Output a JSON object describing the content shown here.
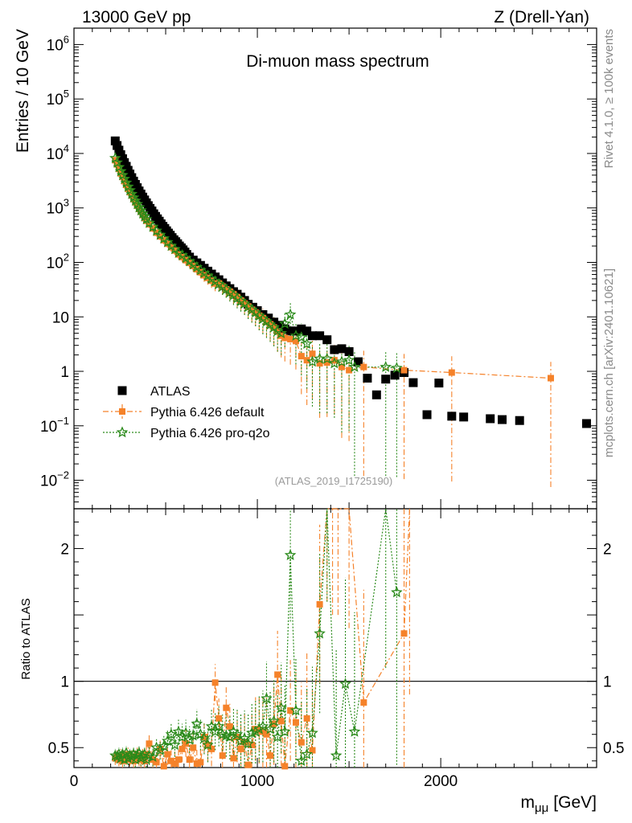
{
  "header": {
    "left": "13000 GeV pp",
    "right": "Z (Drell-Yan)"
  },
  "side_labels": {
    "rivet": "Rivet 4.1.0, ≥ 100k events",
    "mcplots": "mcplots.cern.ch [arXiv:2401.10621]"
  },
  "chart_data": {
    "type": "scatter",
    "title": "Di-muon mass spectrum",
    "analysis_tag": "(ATLAS_2019_I1725190)",
    "xlabel_main": "m",
    "xlabel_sub": "μμ",
    "xlabel_unit": "[GeV]",
    "ylabel": "Entries / 10 GeV",
    "ratio_ylabel": "Ratio to ATLAS",
    "xlim": [
      0,
      2850
    ],
    "ylim": [
      0.003,
      2000000
    ],
    "yscale": "log",
    "ratio_ylim": [
      0.35,
      2.3
    ],
    "x_ticks": [
      0,
      1000,
      2000
    ],
    "y_ticks": [
      {
        "v": 0.01,
        "base": "10",
        "exp": "−2"
      },
      {
        "v": 0.1,
        "base": "10",
        "exp": "−1"
      },
      {
        "v": 1,
        "base": "1",
        "exp": ""
      },
      {
        "v": 10,
        "base": "10",
        "exp": ""
      },
      {
        "v": 100,
        "base": "10",
        "exp": "2"
      },
      {
        "v": 1000,
        "base": "10",
        "exp": "3"
      },
      {
        "v": 10000,
        "base": "10",
        "exp": "4"
      },
      {
        "v": 100000,
        "base": "10",
        "exp": "5"
      },
      {
        "v": 1000000,
        "base": "10",
        "exp": "6"
      }
    ],
    "ratio_ticks": [
      0.5,
      1,
      2
    ],
    "ratio_tick_labels": [
      "0.5",
      "1",
      "2"
    ],
    "legend": [
      {
        "label": "ATLAS"
      },
      {
        "label": "Pythia 6.426 default"
      },
      {
        "label": "Pythia 6.426 pro-q2o"
      }
    ],
    "series": [
      {
        "name": "ATLAS",
        "color": "#000000",
        "marker": "square",
        "x": [
          225,
          235,
          245,
          255,
          265,
          275,
          285,
          295,
          305,
          315,
          325,
          335,
          345,
          355,
          365,
          375,
          385,
          395,
          405,
          415,
          425,
          435,
          445,
          455,
          465,
          475,
          485,
          495,
          505,
          515,
          525,
          535,
          545,
          555,
          565,
          575,
          585,
          595,
          605,
          615,
          630,
          650,
          670,
          690,
          710,
          730,
          750,
          770,
          790,
          810,
          830,
          850,
          870,
          890,
          910,
          930,
          950,
          975,
          1000,
          1030,
          1060,
          1090,
          1120,
          1150,
          1180,
          1210,
          1240,
          1270,
          1300,
          1340,
          1380,
          1420,
          1460,
          1500,
          1550,
          1600,
          1650,
          1700,
          1750,
          1800,
          1850,
          1925,
          1990,
          2060,
          2125,
          2270,
          2335,
          2430,
          2795
        ],
        "y": [
          17000,
          14000,
          11500,
          9500,
          8000,
          6800,
          5800,
          4900,
          4200,
          3600,
          3100,
          2700,
          2350,
          2050,
          1800,
          1580,
          1400,
          1240,
          1100,
          980,
          880,
          780,
          700,
          630,
          570,
          510,
          460,
          420,
          380,
          345,
          315,
          285,
          260,
          240,
          220,
          200,
          185,
          170,
          155,
          140,
          125,
          110,
          98,
          88,
          78,
          69,
          61,
          54,
          48,
          42,
          37,
          33,
          29,
          26,
          23,
          20,
          17,
          15,
          13,
          11,
          9.5,
          8,
          7,
          6,
          5.5,
          5.5,
          6,
          5.5,
          4.5,
          4.5,
          3.8,
          2.5,
          2.6,
          2.3,
          1.5,
          0.75,
          0.37,
          0.72,
          0.85,
          0.95,
          0.62,
          0.16,
          0.61,
          0.15,
          0.145,
          0.135,
          0.13,
          0.125,
          0.11
        ]
      },
      {
        "name": "Pythia 6.426 default",
        "color": "#f5822a",
        "marker": "square",
        "x": [
          225,
          235,
          245,
          255,
          265,
          275,
          285,
          295,
          305,
          315,
          325,
          335,
          345,
          355,
          365,
          375,
          385,
          395,
          410,
          430,
          450,
          470,
          490,
          510,
          530,
          550,
          570,
          590,
          610,
          630,
          650,
          670,
          690,
          710,
          730,
          750,
          770,
          790,
          810,
          830,
          850,
          870,
          890,
          910,
          930,
          950,
          970,
          990,
          1010,
          1030,
          1050,
          1070,
          1090,
          1110,
          1130,
          1150,
          1180,
          1210,
          1240,
          1270,
          1300,
          1340,
          1380,
          1420,
          1460,
          1500,
          1580,
          1800,
          2060,
          2600
        ],
        "y": [
          7500,
          6300,
          5200,
          4300,
          3700,
          3100,
          2650,
          2250,
          1950,
          1700,
          1450,
          1270,
          1100,
          960,
          850,
          740,
          650,
          580,
          500,
          420,
          350,
          300,
          255,
          220,
          190,
          165,
          140,
          125,
          110,
          98,
          86,
          75,
          66,
          58,
          52,
          46,
          41,
          41,
          36,
          32,
          29,
          26,
          23,
          20,
          17.5,
          15.5,
          13.5,
          12,
          10.5,
          9.5,
          8.2,
          7.3,
          6.4,
          5.4,
          4.5,
          4.1,
          3.9,
          3.6,
          1.9,
          1.6,
          2.1,
          1.4,
          1.45,
          1.6,
          1.2,
          1.05,
          1.2,
          1.05,
          0.95,
          0.75
        ],
        "yerr": [
          0.08,
          0.08,
          0.08,
          0.08,
          0.09,
          0.09,
          0.1,
          0.1,
          0.1,
          0.1,
          0.12,
          0.12,
          0.12,
          0.12,
          0.12,
          0.13,
          0.13,
          0.13,
          0.14,
          0.14,
          0.15,
          0.15,
          0.16,
          0.16,
          0.17,
          0.18,
          0.18,
          0.19,
          0.2,
          0.2,
          0.22,
          0.22,
          0.23,
          0.24,
          0.25,
          0.26,
          0.28,
          0.28,
          0.3,
          0.3,
          0.32,
          0.34,
          0.35,
          0.36,
          0.38,
          0.4,
          0.42,
          0.44,
          0.46,
          0.48,
          0.5,
          0.52,
          0.55,
          0.58,
          0.6,
          0.63,
          0.66,
          0.7,
          0.8,
          0.85,
          0.85,
          0.9,
          0.9,
          0.9,
          0.95,
          0.95,
          0.99,
          0.99,
          0.99,
          0.99
        ],
        "ratio_x": [
          225,
          235,
          245,
          255,
          265,
          275,
          285,
          295,
          305,
          315,
          325,
          335,
          345,
          355,
          365,
          375,
          385,
          395,
          410,
          430,
          450,
          470,
          490,
          510,
          530,
          550,
          570,
          590,
          610,
          630,
          650,
          670,
          690,
          710,
          730,
          750,
          770,
          790,
          810,
          830,
          850,
          870,
          890,
          910,
          930,
          950,
          970,
          990,
          1010,
          1030,
          1050,
          1070,
          1090,
          1110,
          1130,
          1150,
          1180,
          1210,
          1240,
          1270,
          1300,
          1340,
          1380,
          1410,
          1440,
          1500,
          1580,
          1800,
          1830
        ],
        "ratio": [
          0.42,
          0.43,
          0.41,
          0.44,
          0.4,
          0.43,
          0.42,
          0.45,
          0.41,
          0.43,
          0.4,
          0.42,
          0.44,
          0.42,
          0.41,
          0.43,
          0.4,
          0.45,
          0.53,
          0.41,
          0.39,
          0.49,
          0.36,
          0.45,
          0.4,
          0.38,
          0.41,
          0.49,
          0.53,
          0.41,
          0.5,
          0.38,
          0.39,
          0.58,
          0.52,
          0.49,
          0.99,
          0.72,
          0.44,
          0.8,
          0.66,
          0.42,
          0.58,
          0.49,
          0.54,
          0.37,
          0.52,
          0.64,
          0.63,
          0.62,
          0.6,
          0.44,
          0.68,
          1.05,
          0.7,
          0.36,
          0.78,
          0.69,
          0.54,
          0.72,
          0.48,
          1.58,
          2.3,
          2.3,
          2.3,
          2.3,
          0.84,
          1.36,
          2.3
        ],
        "ratio_err": [
          0.05,
          0.05,
          0.05,
          0.05,
          0.05,
          0.05,
          0.05,
          0.05,
          0.05,
          0.05,
          0.06,
          0.06,
          0.06,
          0.06,
          0.06,
          0.06,
          0.06,
          0.06,
          0.07,
          0.07,
          0.07,
          0.07,
          0.08,
          0.08,
          0.08,
          0.09,
          0.09,
          0.1,
          0.1,
          0.1,
          0.11,
          0.11,
          0.12,
          0.12,
          0.13,
          0.13,
          0.14,
          0.15,
          0.15,
          0.16,
          0.17,
          0.18,
          0.19,
          0.2,
          0.21,
          0.22,
          0.23,
          0.24,
          0.25,
          0.27,
          0.28,
          0.29,
          0.31,
          0.33,
          0.34,
          0.36,
          0.38,
          0.4,
          0.45,
          0.5,
          0.5,
          0.6,
          0.7,
          0.8,
          0.8,
          0.9,
          0.85,
          1.3,
          1.4
        ]
      },
      {
        "name": "Pythia 6.426 pro-q2o",
        "color": "#2a8a1a",
        "marker": "star",
        "x": [
          225,
          235,
          245,
          255,
          265,
          275,
          285,
          295,
          305,
          315,
          325,
          335,
          345,
          355,
          365,
          375,
          385,
          395,
          410,
          430,
          450,
          470,
          490,
          510,
          530,
          550,
          570,
          590,
          610,
          630,
          650,
          670,
          690,
          710,
          730,
          750,
          770,
          790,
          810,
          830,
          850,
          870,
          890,
          910,
          930,
          950,
          970,
          990,
          1010,
          1030,
          1050,
          1070,
          1090,
          1110,
          1130,
          1150,
          1180,
          1210,
          1240,
          1270,
          1300,
          1340,
          1380,
          1420,
          1460,
          1500,
          1530,
          1700,
          1760
        ],
        "y": [
          8200,
          6800,
          5600,
          4700,
          4000,
          3400,
          2900,
          2450,
          2100,
          1800,
          1550,
          1350,
          1170,
          1020,
          900,
          790,
          700,
          620,
          530,
          450,
          380,
          320,
          275,
          235,
          200,
          175,
          150,
          135,
          120,
          105,
          92,
          82,
          72,
          64,
          57,
          50,
          45,
          40,
          36,
          32,
          28,
          25,
          22,
          19.5,
          17.5,
          15.2,
          13.5,
          12,
          10.5,
          9.2,
          8.2,
          7.2,
          6.4,
          5.5,
          5,
          7.5,
          11,
          4.5,
          4.2,
          3.2,
          1.5,
          1.7,
          1.7,
          1.4,
          1.5,
          1.6,
          1.2,
          1.2,
          1.15
        ],
        "yerr": [
          0.08,
          0.08,
          0.08,
          0.08,
          0.09,
          0.09,
          0.1,
          0.1,
          0.1,
          0.1,
          0.12,
          0.12,
          0.12,
          0.12,
          0.12,
          0.13,
          0.13,
          0.13,
          0.14,
          0.14,
          0.15,
          0.15,
          0.16,
          0.16,
          0.17,
          0.18,
          0.18,
          0.19,
          0.2,
          0.2,
          0.22,
          0.22,
          0.23,
          0.24,
          0.25,
          0.26,
          0.28,
          0.28,
          0.3,
          0.3,
          0.32,
          0.34,
          0.35,
          0.36,
          0.38,
          0.4,
          0.42,
          0.44,
          0.46,
          0.48,
          0.5,
          0.52,
          0.55,
          0.58,
          0.6,
          0.63,
          0.66,
          0.7,
          0.8,
          0.85,
          0.85,
          0.9,
          0.9,
          0.9,
          0.95,
          0.95,
          0.99,
          0.99,
          0.99
        ],
        "ratio_x": [
          225,
          235,
          245,
          255,
          265,
          275,
          285,
          295,
          305,
          315,
          325,
          335,
          345,
          355,
          365,
          375,
          385,
          395,
          410,
          430,
          450,
          470,
          490,
          510,
          530,
          550,
          570,
          590,
          610,
          630,
          650,
          670,
          690,
          710,
          730,
          750,
          770,
          790,
          810,
          830,
          850,
          870,
          890,
          910,
          930,
          950,
          970,
          990,
          1010,
          1030,
          1050,
          1070,
          1090,
          1110,
          1130,
          1150,
          1180,
          1210,
          1240,
          1270,
          1300,
          1340,
          1380,
          1430,
          1480,
          1530,
          1700,
          1760
        ],
        "ratio": [
          0.44,
          0.43,
          0.45,
          0.42,
          0.45,
          0.41,
          0.46,
          0.42,
          0.44,
          0.43,
          0.45,
          0.41,
          0.44,
          0.46,
          0.42,
          0.43,
          0.45,
          0.41,
          0.44,
          0.43,
          0.5,
          0.48,
          0.51,
          0.55,
          0.6,
          0.52,
          0.62,
          0.58,
          0.61,
          0.56,
          0.59,
          0.68,
          0.6,
          0.57,
          0.52,
          0.66,
          0.62,
          0.66,
          0.6,
          0.59,
          0.58,
          0.62,
          0.6,
          0.55,
          0.57,
          0.53,
          0.61,
          0.62,
          0.64,
          0.66,
          0.87,
          0.64,
          0.7,
          0.58,
          0.8,
          0.62,
          1.95,
          0.78,
          0.4,
          0.45,
          0.61,
          1.36,
          2.3,
          0.44,
          0.98,
          0.62,
          2.3,
          1.67
        ],
        "ratio_err": [
          0.05,
          0.05,
          0.05,
          0.05,
          0.05,
          0.05,
          0.05,
          0.05,
          0.05,
          0.05,
          0.06,
          0.06,
          0.06,
          0.06,
          0.06,
          0.06,
          0.06,
          0.06,
          0.07,
          0.07,
          0.07,
          0.07,
          0.08,
          0.08,
          0.08,
          0.09,
          0.09,
          0.1,
          0.1,
          0.1,
          0.11,
          0.11,
          0.12,
          0.12,
          0.13,
          0.13,
          0.14,
          0.15,
          0.15,
          0.16,
          0.17,
          0.18,
          0.19,
          0.2,
          0.21,
          0.22,
          0.23,
          0.24,
          0.25,
          0.27,
          0.28,
          0.29,
          0.31,
          0.33,
          0.34,
          0.36,
          0.5,
          0.4,
          0.45,
          0.5,
          0.5,
          0.6,
          0.7,
          0.8,
          0.8,
          0.9,
          1.2,
          1.3
        ]
      }
    ]
  }
}
